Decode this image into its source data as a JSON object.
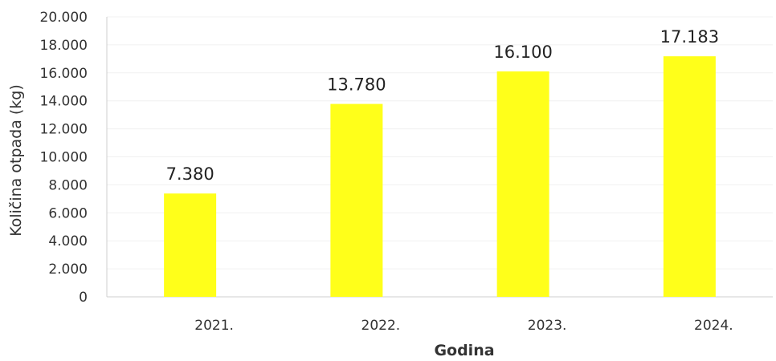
{
  "chart_data": {
    "type": "bar",
    "categories": [
      "2021.",
      "2022.",
      "2023.",
      "2024."
    ],
    "values": [
      7380,
      13780,
      16100,
      17183
    ],
    "data_labels": [
      "7.380",
      "13.780",
      "16.100",
      "17.183"
    ],
    "ylabel": "Količina otpada (kg)",
    "xlabel": "Godina",
    "ylim": [
      0,
      20000
    ],
    "y_ticks": [
      0,
      2000,
      4000,
      6000,
      8000,
      10000,
      12000,
      14000,
      16000,
      18000,
      20000
    ],
    "y_tick_labels": [
      "0",
      "2.000",
      "4.000",
      "6.000",
      "8.000",
      "10.000",
      "12.000",
      "14.000",
      "16.000",
      "18.000",
      "20.000"
    ],
    "bar_color": "#ffff1a",
    "grid": true,
    "legend": "none"
  }
}
